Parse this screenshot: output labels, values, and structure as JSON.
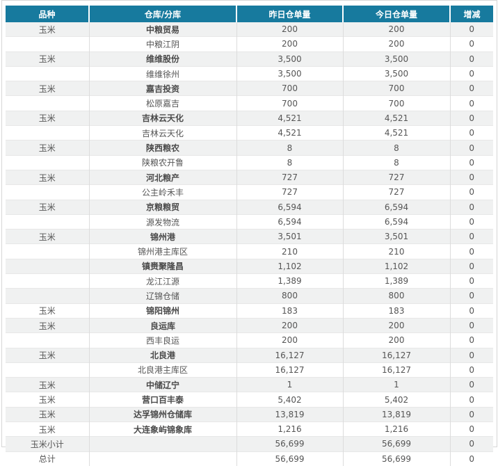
{
  "colors": {
    "header_bg": "#177a9e",
    "header_text": "#ffffff",
    "row_alt": "#f0f1f1",
    "row_line": "#e7e7e7",
    "col_line": "#dcdcdc",
    "panel_border": "#d6d6d6",
    "text_color": "#555555",
    "main_text": "#4a4a4a"
  },
  "table": {
    "headers": [
      "品种",
      "仓库/分库",
      "昨日仓单量",
      "今日仓单量",
      "增减"
    ],
    "rows": [
      {
        "variety": "玉米",
        "warehouse": "中粮贸易",
        "yesterday": "200",
        "today": "200",
        "change": "0",
        "bold": true
      },
      {
        "variety": "",
        "warehouse": "中粮江阴",
        "yesterday": "200",
        "today": "200",
        "change": "0",
        "bold": false
      },
      {
        "variety": "玉米",
        "warehouse": "维维股份",
        "yesterday": "3,500",
        "today": "3,500",
        "change": "0",
        "bold": true
      },
      {
        "variety": "",
        "warehouse": "维维徐州",
        "yesterday": "3,500",
        "today": "3,500",
        "change": "0",
        "bold": false
      },
      {
        "variety": "玉米",
        "warehouse": "嘉吉投资",
        "yesterday": "700",
        "today": "700",
        "change": "0",
        "bold": true
      },
      {
        "variety": "",
        "warehouse": "松原嘉吉",
        "yesterday": "700",
        "today": "700",
        "change": "0",
        "bold": false
      },
      {
        "variety": "玉米",
        "warehouse": "吉林云天化",
        "yesterday": "4,521",
        "today": "4,521",
        "change": "0",
        "bold": true
      },
      {
        "variety": "",
        "warehouse": "吉林云天化",
        "yesterday": "4,521",
        "today": "4,521",
        "change": "0",
        "bold": false
      },
      {
        "variety": "玉米",
        "warehouse": "陕西粮农",
        "yesterday": "8",
        "today": "8",
        "change": "0",
        "bold": true
      },
      {
        "variety": "",
        "warehouse": "陕粮农开鲁",
        "yesterday": "8",
        "today": "8",
        "change": "0",
        "bold": false
      },
      {
        "variety": "玉米",
        "warehouse": "河北粮产",
        "yesterday": "727",
        "today": "727",
        "change": "0",
        "bold": true
      },
      {
        "variety": "",
        "warehouse": "公主岭禾丰",
        "yesterday": "727",
        "today": "727",
        "change": "0",
        "bold": false
      },
      {
        "variety": "玉米",
        "warehouse": "京粮粮贸",
        "yesterday": "6,594",
        "today": "6,594",
        "change": "0",
        "bold": true
      },
      {
        "variety": "",
        "warehouse": "源发物流",
        "yesterday": "6,594",
        "today": "6,594",
        "change": "0",
        "bold": false
      },
      {
        "variety": "玉米",
        "warehouse": "锦州港",
        "yesterday": "3,501",
        "today": "3,501",
        "change": "0",
        "bold": true
      },
      {
        "variety": "",
        "warehouse": "锦州港主库区",
        "yesterday": "210",
        "today": "210",
        "change": "0",
        "bold": false
      },
      {
        "variety": "",
        "warehouse": "镇赉聚隆昌",
        "yesterday": "1,102",
        "today": "1,102",
        "change": "0",
        "bold": true
      },
      {
        "variety": "",
        "warehouse": "龙江江源",
        "yesterday": "1,389",
        "today": "1,389",
        "change": "0",
        "bold": false
      },
      {
        "variety": "",
        "warehouse": "辽锦仓储",
        "yesterday": "800",
        "today": "800",
        "change": "0",
        "bold": false
      },
      {
        "variety": "玉米",
        "warehouse": "锦阳锦州",
        "yesterday": "183",
        "today": "183",
        "change": "0",
        "bold": true
      },
      {
        "variety": "玉米",
        "warehouse": "良运库",
        "yesterday": "200",
        "today": "200",
        "change": "0",
        "bold": true
      },
      {
        "variety": "",
        "warehouse": "西丰良运",
        "yesterday": "200",
        "today": "200",
        "change": "0",
        "bold": false
      },
      {
        "variety": "玉米",
        "warehouse": "北良港",
        "yesterday": "16,127",
        "today": "16,127",
        "change": "0",
        "bold": true
      },
      {
        "variety": "",
        "warehouse": "北良港主库区",
        "yesterday": "16,127",
        "today": "16,127",
        "change": "0",
        "bold": false
      },
      {
        "variety": "玉米",
        "warehouse": "中储辽宁",
        "yesterday": "1",
        "today": "1",
        "change": "0",
        "bold": true
      },
      {
        "variety": "玉米",
        "warehouse": "营口百丰泰",
        "yesterday": "5,402",
        "today": "5,402",
        "change": "0",
        "bold": true
      },
      {
        "variety": "玉米",
        "warehouse": "达孚锦州仓储库",
        "yesterday": "13,819",
        "today": "13,819",
        "change": "0",
        "bold": true
      },
      {
        "variety": "玉米",
        "warehouse": "大连象屿锦象库",
        "yesterday": "1,216",
        "today": "1,216",
        "change": "0",
        "bold": true
      },
      {
        "variety": "玉米小计",
        "warehouse": "",
        "yesterday": "56,699",
        "today": "56,699",
        "change": "0",
        "bold": false
      },
      {
        "variety": "总计",
        "warehouse": "",
        "yesterday": "56,699",
        "today": "56,699",
        "change": "0",
        "bold": false
      }
    ]
  }
}
